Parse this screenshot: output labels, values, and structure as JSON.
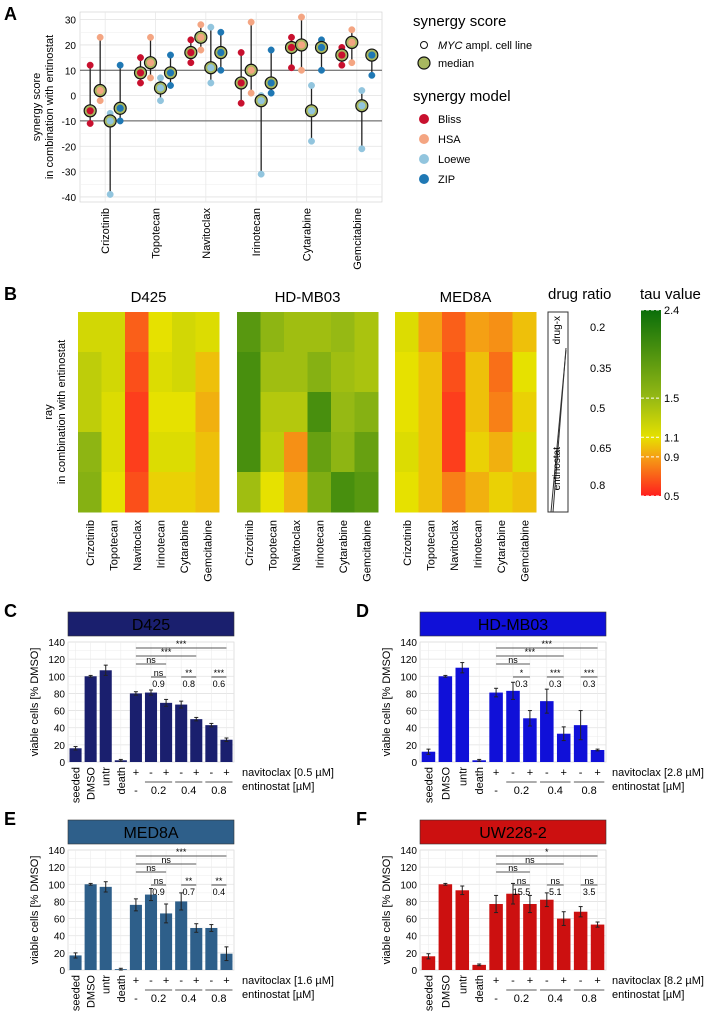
{
  "panel_letters": [
    "A",
    "B",
    "C",
    "D",
    "E",
    "F"
  ],
  "colors": {
    "Bliss": "#c8102e",
    "HSA": "#f4a582",
    "Loewe": "#92c5de",
    "ZIP": "#1f78b4",
    "median_fill": "#a8b860",
    "D425": "#1a1f6e",
    "HD-MB03": "#1010d8",
    "MED8A": "#2e5f8a",
    "UW228-2": "#cc1010"
  },
  "panelA": {
    "ylabel_line1": "synergy score",
    "ylabel_line2": "in combination with entinostat",
    "legend_title1": "synergy score",
    "legend_cell_line_prefix": "MYC",
    "legend_cell_line_suffix": " ampl. cell line",
    "legend_median": "median",
    "legend_title2": "synergy model",
    "legend_models": [
      "Bliss",
      "HSA",
      "Loewe",
      "ZIP"
    ],
    "chart_data": {
      "type": "scatter",
      "categories": [
        "Crizotinib",
        "Topotecan",
        "Navitoclax",
        "Irinotecan",
        "Cytarabine",
        "Gemcitabine"
      ],
      "yticks": [
        -40,
        -30,
        -20,
        -10,
        0,
        10,
        20,
        30
      ],
      "ylim": [
        -42,
        33
      ],
      "reference_lines": [
        10,
        -10
      ],
      "series": [
        {
          "name": "Bliss",
          "points": [
            {
              "cat": 0,
              "median": -6,
              "values": [
                -11,
                12
              ]
            },
            {
              "cat": 1,
              "median": 9,
              "values": [
                5,
                15
              ]
            },
            {
              "cat": 2,
              "median": 17,
              "values": [
                13,
                22
              ]
            },
            {
              "cat": 3,
              "median": 5,
              "values": [
                -3,
                17
              ]
            },
            {
              "cat": 4,
              "median": 19,
              "values": [
                11,
                23
              ]
            },
            {
              "cat": 5,
              "median": 16,
              "values": [
                12,
                19
              ]
            }
          ]
        },
        {
          "name": "HSA",
          "points": [
            {
              "cat": 0,
              "median": 2,
              "values": [
                -2,
                23
              ]
            },
            {
              "cat": 1,
              "median": 13,
              "values": [
                7,
                23
              ]
            },
            {
              "cat": 2,
              "median": 23,
              "values": [
                18,
                28
              ]
            },
            {
              "cat": 3,
              "median": 10,
              "values": [
                1,
                29
              ]
            },
            {
              "cat": 4,
              "median": 20,
              "values": [
                10,
                31
              ]
            },
            {
              "cat": 5,
              "median": 21,
              "values": [
                13,
                26
              ]
            }
          ]
        },
        {
          "name": "Loewe",
          "points": [
            {
              "cat": 0,
              "median": -10,
              "values": [
                -39,
                -7
              ]
            },
            {
              "cat": 1,
              "median": 3,
              "values": [
                -2,
                7
              ]
            },
            {
              "cat": 2,
              "median": 11,
              "values": [
                5,
                27
              ]
            },
            {
              "cat": 3,
              "median": -2,
              "values": [
                -31,
                0
              ]
            },
            {
              "cat": 4,
              "median": -6,
              "values": [
                -18,
                4
              ]
            },
            {
              "cat": 5,
              "median": -4,
              "values": [
                -21,
                2
              ]
            }
          ]
        },
        {
          "name": "ZIP",
          "points": [
            {
              "cat": 0,
              "median": -5,
              "values": [
                -10,
                12
              ]
            },
            {
              "cat": 1,
              "median": 9,
              "values": [
                4,
                16
              ]
            },
            {
              "cat": 2,
              "median": 17,
              "values": [
                10,
                25
              ]
            },
            {
              "cat": 3,
              "median": 5,
              "values": [
                1,
                18
              ]
            },
            {
              "cat": 4,
              "median": 19,
              "values": [
                10,
                22
              ]
            },
            {
              "cat": 5,
              "median": 16,
              "values": [
                8,
                17
              ]
            }
          ]
        }
      ]
    }
  },
  "panelB": {
    "ylabel_line1": "ray",
    "ylabel_line2": "in combination with entinostat",
    "drug_ratio_title": "drug ratio",
    "ratio_top_label": "drug-x",
    "ratio_bottom_label": "entinostat",
    "legend_title": "tau value",
    "legend_ticks": [
      "2.4",
      "1.5",
      "1.1",
      "0.9",
      "0.5"
    ],
    "chart_data": {
      "type": "heatmap",
      "columns": [
        "Crizotinib",
        "Topotecan",
        "Navitoclax",
        "Irinotecan",
        "Cytarabine",
        "Gemcitabine"
      ],
      "rows": [
        "0.2",
        "0.35",
        "0.5",
        "0.65",
        "0.8"
      ],
      "value_range": [
        0.5,
        2.4
      ],
      "panels": [
        {
          "title": "D425",
          "values": [
            [
              1.2,
              1.2,
              0.7,
              1.1,
              1.2,
              1.15
            ],
            [
              1.3,
              1.2,
              0.65,
              1.15,
              1.2,
              1.0
            ],
            [
              1.3,
              1.15,
              0.6,
              1.1,
              1.1,
              0.95
            ],
            [
              1.55,
              1.15,
              0.6,
              1.15,
              1.15,
              1.0
            ],
            [
              1.6,
              1.1,
              0.65,
              1.05,
              1.05,
              1.0
            ]
          ]
        },
        {
          "title": "HD-MB03",
          "values": [
            [
              1.9,
              1.55,
              1.45,
              1.45,
              1.5,
              1.4
            ],
            [
              2.0,
              1.45,
              1.45,
              1.6,
              1.45,
              1.4
            ],
            [
              2.0,
              1.35,
              1.35,
              2.0,
              1.5,
              1.6
            ],
            [
              2.0,
              1.3,
              0.85,
              1.8,
              1.55,
              1.8
            ],
            [
              1.45,
              1.1,
              0.95,
              1.65,
              2.0,
              1.9
            ]
          ]
        },
        {
          "title": "MED8A",
          "values": [
            [
              1.15,
              0.9,
              0.7,
              0.9,
              0.85,
              1.0
            ],
            [
              1.1,
              1.0,
              0.65,
              1.0,
              0.75,
              1.1
            ],
            [
              1.1,
              1.0,
              0.6,
              1.0,
              0.8,
              1.05
            ],
            [
              1.15,
              1.0,
              0.6,
              1.05,
              0.95,
              1.15
            ],
            [
              1.1,
              1.0,
              0.8,
              0.95,
              1.05,
              1.0
            ]
          ]
        }
      ]
    }
  },
  "barpanels": {
    "ylabel": "viable cells [% DMSO]",
    "yticks": [
      0,
      20,
      40,
      60,
      80,
      100,
      120,
      140
    ],
    "ylim": [
      0,
      140
    ],
    "categories": [
      "seeded",
      "DMSO",
      "untr",
      "death",
      "+",
      "-",
      "+",
      "-",
      "+",
      "-",
      "+"
    ],
    "entinostat_doses": [
      "-",
      "0.2",
      "0.4",
      "0.8"
    ],
    "row_entinostat": "entinostat [µM]",
    "panels": [
      {
        "letter": "C",
        "title": "D425",
        "navitoclax_label": "navitoclax [0.5 µM]",
        "values": [
          16,
          100,
          107,
          2,
          80,
          81,
          69,
          67,
          50,
          43,
          26
        ],
        "errors": [
          2,
          1,
          6,
          1,
          2,
          3,
          4,
          4,
          2,
          2,
          2
        ],
        "annotations": [
          {
            "from": 4,
            "to": 10,
            "label": "***"
          },
          {
            "from": 4,
            "to": 8,
            "label": "***"
          },
          {
            "from": 4,
            "to": 6,
            "label": "ns"
          }
        ],
        "pairs": [
          {
            "at": 5.5,
            "sig": "ns",
            "val": "0.9"
          },
          {
            "at": 7.5,
            "sig": "**",
            "val": "0.8"
          },
          {
            "at": 9.5,
            "sig": "***",
            "val": "0.6"
          }
        ]
      },
      {
        "letter": "D",
        "title": "HD-MB03",
        "navitoclax_label": "navitoclax [2.8 µM]",
        "values": [
          12,
          100,
          110,
          2,
          81,
          83,
          51,
          71,
          33,
          43,
          14
        ],
        "errors": [
          3,
          1,
          6,
          1,
          5,
          10,
          9,
          14,
          8,
          17,
          1
        ],
        "annotations": [
          {
            "from": 4,
            "to": 10,
            "label": "***"
          },
          {
            "from": 4,
            "to": 8,
            "label": "***"
          },
          {
            "from": 4,
            "to": 6,
            "label": "ns"
          }
        ],
        "pairs": [
          {
            "at": 5.5,
            "sig": "*",
            "val": "0.3"
          },
          {
            "at": 7.5,
            "sig": "***",
            "val": "0.3"
          },
          {
            "at": 9.5,
            "sig": "***",
            "val": "0.3"
          }
        ]
      },
      {
        "letter": "E",
        "title": "MED8A",
        "navitoclax_label": "navitoclax [1.6 µM]",
        "values": [
          17,
          100,
          97,
          1,
          76,
          88,
          66,
          80,
          49,
          49,
          19
        ],
        "errors": [
          3,
          1,
          6,
          1,
          7,
          7,
          11,
          10,
          5,
          4,
          8
        ],
        "annotations": [
          {
            "from": 4,
            "to": 10,
            "label": "***"
          },
          {
            "from": 4,
            "to": 8,
            "label": "ns"
          },
          {
            "from": 4,
            "to": 6,
            "label": "ns"
          }
        ],
        "pairs": [
          {
            "at": 5.5,
            "sig": "ns",
            "val": "0.9"
          },
          {
            "at": 7.5,
            "sig": "**",
            "val": "0.7"
          },
          {
            "at": 9.5,
            "sig": "**",
            "val": "0.4"
          }
        ]
      },
      {
        "letter": "F",
        "title": "UW228-2",
        "navitoclax_label": "navitoclax [8.2 µM]",
        "values": [
          16,
          100,
          93,
          6,
          77,
          89,
          77,
          82,
          60,
          68,
          53
        ],
        "errors": [
          3,
          1,
          5,
          1,
          10,
          12,
          10,
          8,
          8,
          6,
          3
        ],
        "annotations": [
          {
            "from": 4,
            "to": 10,
            "label": "*"
          },
          {
            "from": 4,
            "to": 8,
            "label": "ns"
          },
          {
            "from": 4,
            "to": 6,
            "label": "ns"
          }
        ],
        "pairs": [
          {
            "at": 5.5,
            "sig": "ns",
            "val": "15.5"
          },
          {
            "at": 7.5,
            "sig": "ns",
            "val": "5.1"
          },
          {
            "at": 9.5,
            "sig": "ns",
            "val": "3.5"
          }
        ]
      }
    ]
  }
}
